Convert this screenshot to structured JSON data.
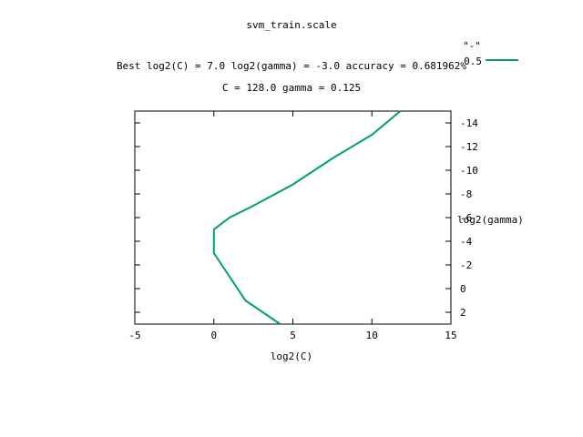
{
  "chart_data": {
    "type": "line",
    "title": "svm_train.scale",
    "subtitle_1": "Best log2(C) = 7.0  log2(gamma) = -3.0  accuracy = 0.681962%",
    "subtitle_2": "C = 128.0  gamma = 0.125",
    "xlabel": "log2(C)",
    "ylabel": "log2(gamma)",
    "xlim": [
      -5,
      15
    ],
    "ylim": [
      -15,
      3
    ],
    "y_reversed": true,
    "x_ticks": [
      -5,
      0,
      5,
      10,
      15
    ],
    "y_ticks": [
      -14,
      -12,
      -10,
      -8,
      -6,
      -4,
      -2,
      0,
      2
    ],
    "grid": false,
    "legend": {
      "placement": "top-right",
      "label": "\"-\"",
      "value_label": "0.5"
    },
    "line_color": "#009e73",
    "series": [
      {
        "x": [
          4.2,
          2.0,
          1.0,
          0.0,
          0.0,
          1.0,
          2.5,
          5.0,
          7.5,
          10.0,
          11.8
        ],
        "y": [
          3.0,
          1.0,
          -1.0,
          -3.0,
          -5.0,
          -6.0,
          -7.0,
          -8.8,
          -11.0,
          -13.0,
          -15.0
        ]
      }
    ]
  }
}
